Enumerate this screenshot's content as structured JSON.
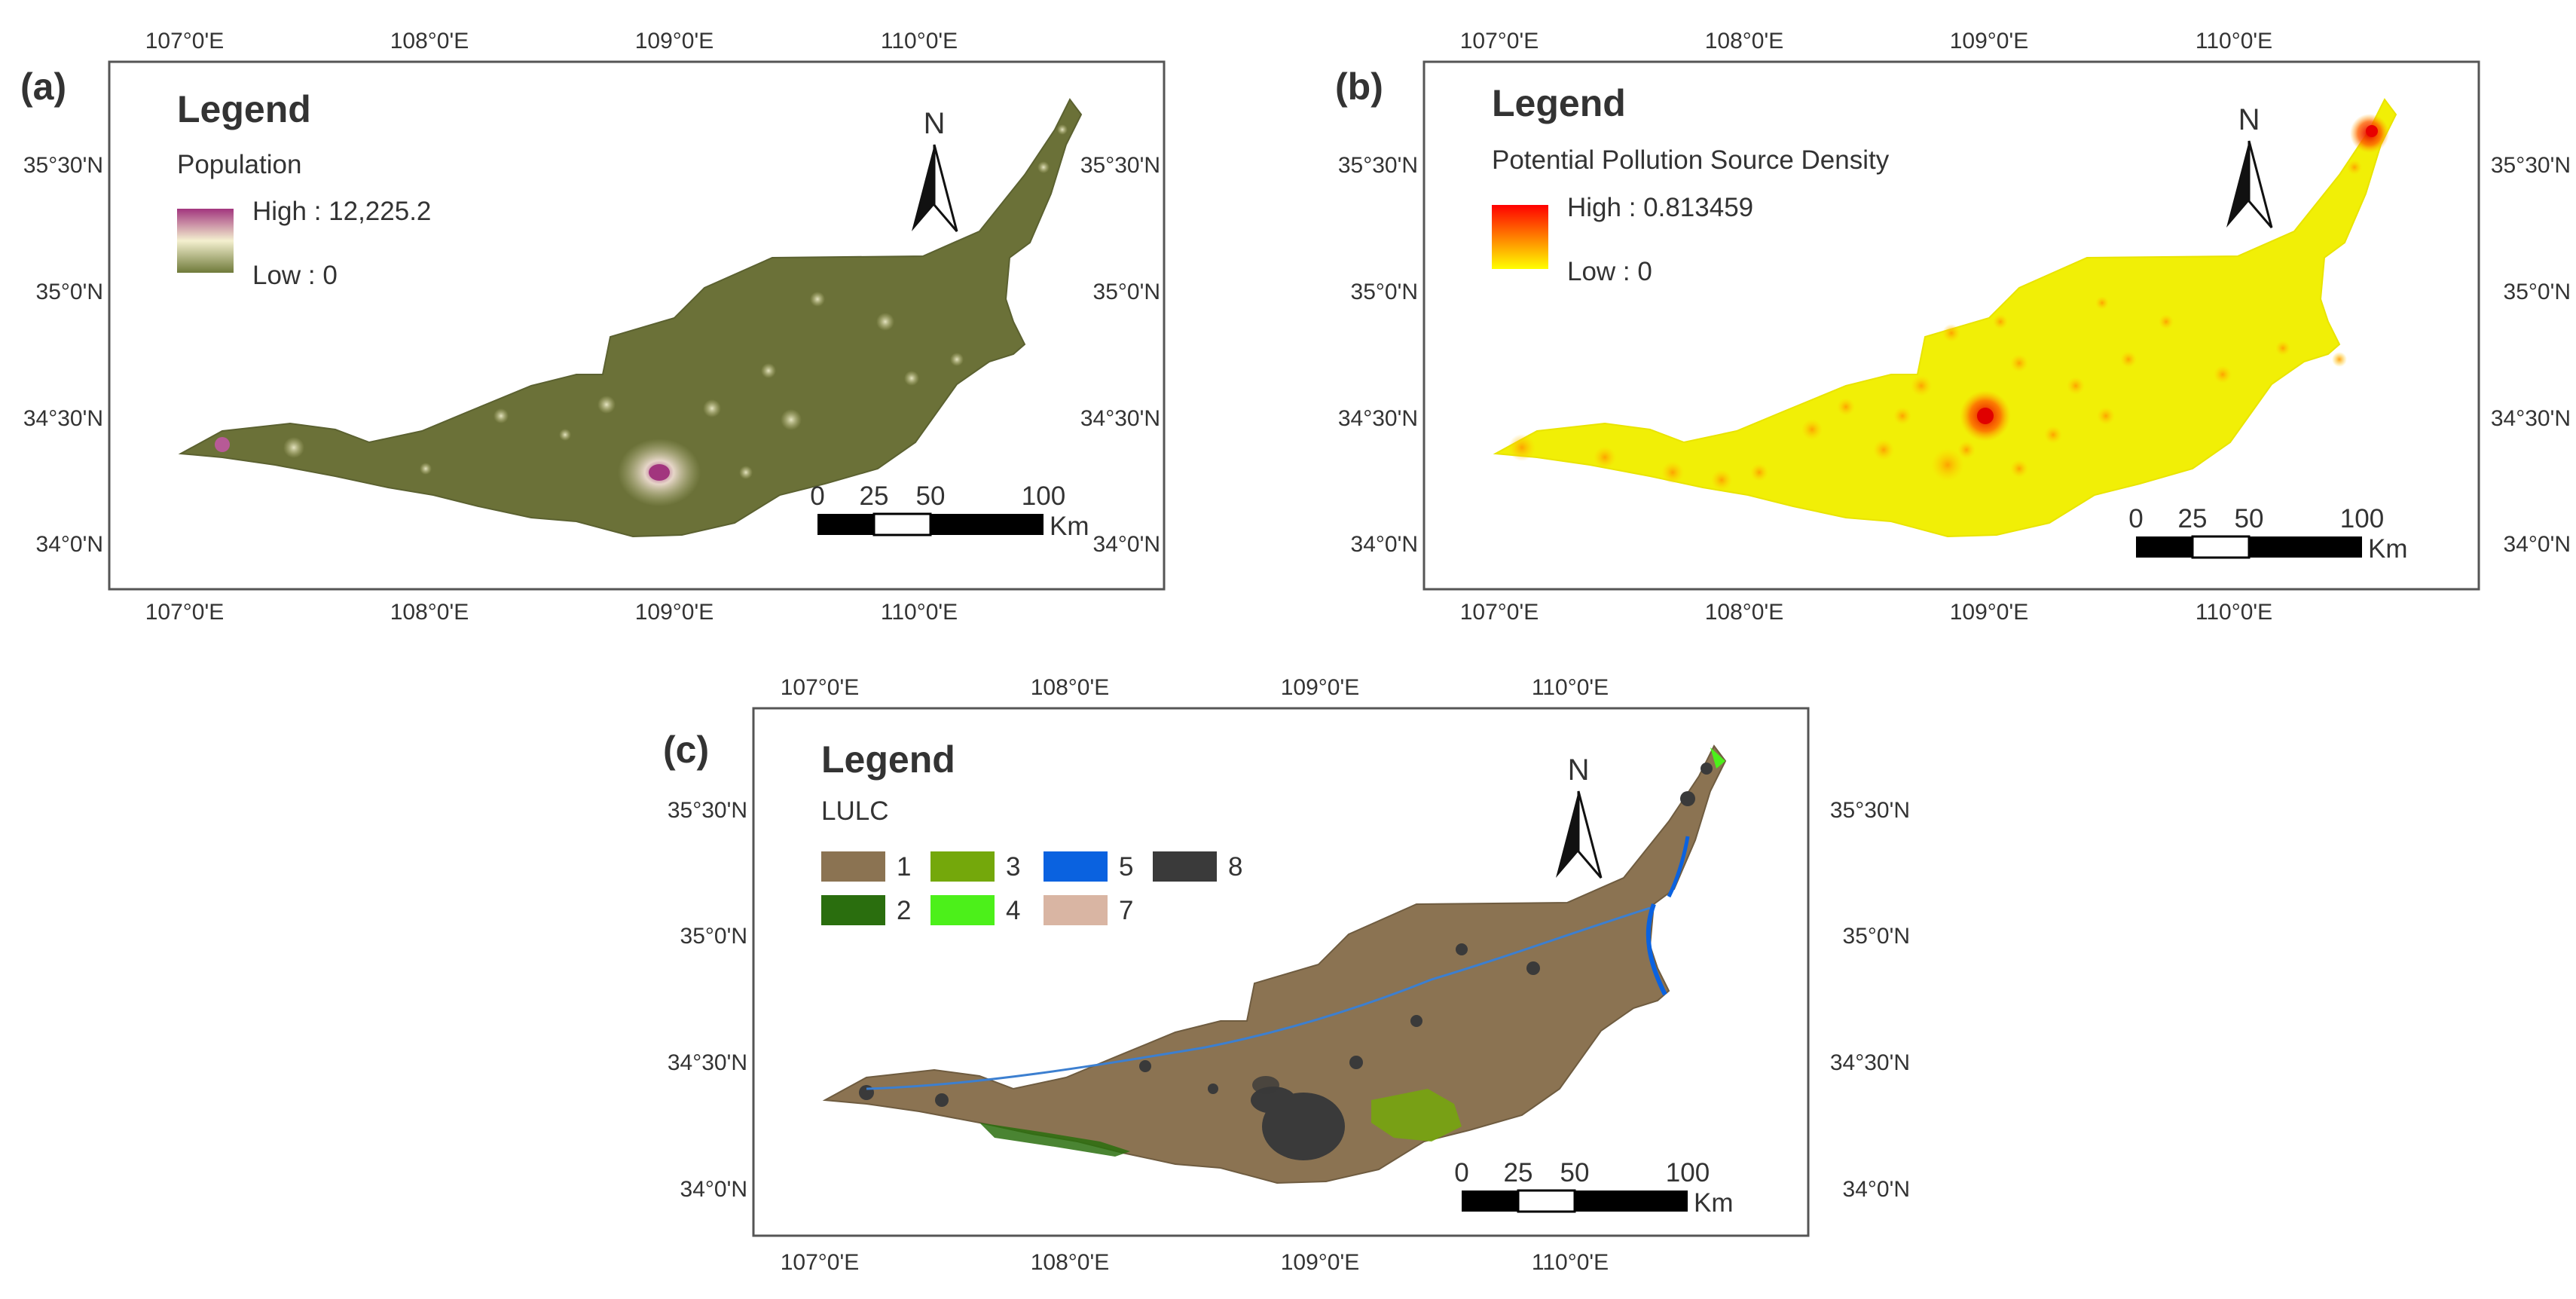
{
  "panels": [
    {
      "id": "a",
      "tag": "(a)",
      "legend_title": "Legend",
      "legend_subtitle": "Population",
      "legend_high": "High : 12,225.2",
      "legend_low": "Low : 0",
      "ramp_colors": [
        "#a2357e",
        "#f4f0cf",
        "#6f7a3a"
      ]
    },
    {
      "id": "b",
      "tag": "(b)",
      "legend_title": "Legend",
      "legend_subtitle": "Potential Pollution Source Density",
      "legend_high": "High : 0.813459",
      "legend_low": "Low : 0",
      "ramp_colors": [
        "#ff0000",
        "#ff8c00",
        "#ffff00"
      ]
    },
    {
      "id": "c",
      "tag": "(c)",
      "legend_title": "Legend",
      "legend_subtitle": "LULC",
      "classes": [
        {
          "label": "1",
          "color": "#8b7352"
        },
        {
          "label": "2",
          "color": "#2a6e0e"
        },
        {
          "label": "3",
          "color": "#74a80b"
        },
        {
          "label": "4",
          "color": "#4cf01a"
        },
        {
          "label": "5",
          "color": "#0a62e0"
        },
        {
          "label": "7",
          "color": "#d9b5a3"
        },
        {
          "label": "8",
          "color": "#3a3a3a"
        }
      ]
    }
  ],
  "lon_ticks": [
    "107°0'E",
    "108°0'E",
    "109°0'E",
    "110°0'E"
  ],
  "lat_ticks": [
    "35°30'N",
    "35°0'N",
    "34°30'N",
    "34°0'N"
  ],
  "north_label": "N",
  "scalebar": {
    "ticks": [
      "0",
      "25",
      "50",
      "100"
    ],
    "unit": "Km"
  },
  "colors": {
    "population_base": "#6b7138",
    "pollution_base": "#f1ef06",
    "lulc_base": "#8b7352",
    "urban": "#3a3a3a",
    "river": "#3c7fd0",
    "frame": "#555555"
  }
}
